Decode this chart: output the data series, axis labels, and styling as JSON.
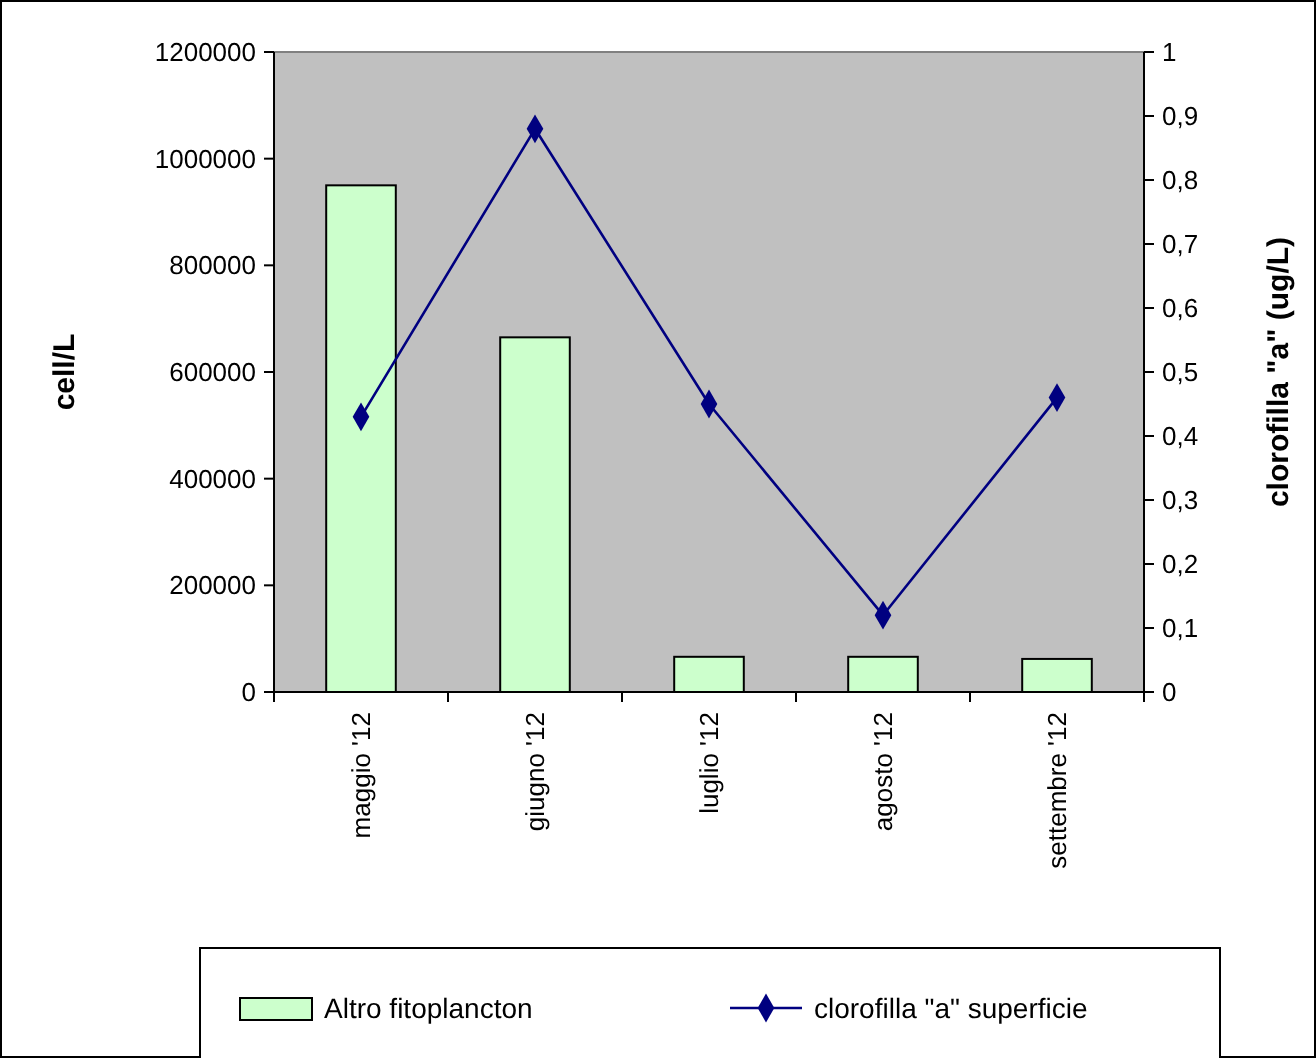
{
  "chart_data": {
    "type": "bar",
    "categories": [
      "maggio '12",
      "giugno '12",
      "luglio '12",
      "agosto '12",
      "settembre '12"
    ],
    "series": [
      {
        "name": "Altro fitoplancton",
        "color": "#ccffcc",
        "values": [
          950000,
          665000,
          66000,
          66000,
          62000
        ]
      },
      {
        "name": "clorofilla \"a\" superficie",
        "type": "line",
        "axis": "y2",
        "color": "#000080",
        "marker": "diamond",
        "values": [
          0.43,
          0.88,
          0.45,
          0.12,
          0.46
        ]
      }
    ],
    "ylabel": "cell/L",
    "y2label": "clorofilla \"a\" (ug/L)",
    "ylim": [
      0,
      1200000
    ],
    "yticks": [
      0,
      200000,
      400000,
      600000,
      800000,
      1000000,
      1200000
    ],
    "y2lim": [
      0,
      1
    ],
    "y2ticks": [
      0,
      {
        "value": 0.1,
        "label": "0,1"
      },
      {
        "value": 0.2,
        "label": "0,2"
      },
      {
        "value": 0.3,
        "label": "0,3"
      },
      {
        "value": 0.4,
        "label": "0,4"
      },
      {
        "value": 0.5,
        "label": "0,5"
      },
      {
        "value": 0.6,
        "label": "0,6"
      },
      {
        "value": 0.7,
        "label": "0,7"
      },
      {
        "value": 0.8,
        "label": "0,8"
      },
      {
        "value": 0.9,
        "label": "0,9"
      },
      1
    ],
    "legend": "bottom",
    "grid": false
  }
}
